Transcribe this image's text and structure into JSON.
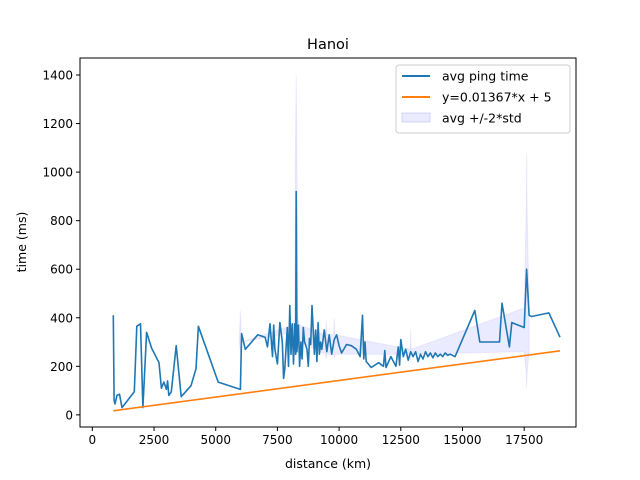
{
  "chart_data": {
    "type": "line",
    "title": "Hanoi",
    "xlabel": "distance (km)",
    "ylabel": "time (ms)",
    "xlim": [
      -500,
      19600
    ],
    "ylim": [
      -50,
      1470
    ],
    "xticks": [
      0,
      2500,
      5000,
      7500,
      10000,
      12500,
      15000,
      17500
    ],
    "xtick_labels": [
      "0",
      "2500",
      "5000",
      "7500",
      "10000",
      "12500",
      "15000",
      "17500"
    ],
    "yticks": [
      0,
      200,
      400,
      600,
      800,
      1000,
      1200,
      1400
    ],
    "ytick_labels": [
      "0",
      "200",
      "400",
      "600",
      "800",
      "1000",
      "1200",
      "1400"
    ],
    "legend_position": "top-right",
    "series": [
      {
        "name": "avg ping time",
        "kind": "line",
        "color": "#1f77b4",
        "x": [
          850,
          880,
          920,
          1000,
          1100,
          1200,
          1700,
          1800,
          1950,
          2050,
          2200,
          2400,
          2700,
          2800,
          2900,
          3000,
          3050,
          3100,
          3200,
          3400,
          3600,
          4000,
          4200,
          4300,
          5100,
          6000,
          6050,
          6200,
          6700,
          7000,
          7100,
          7200,
          7300,
          7350,
          7400,
          7500,
          7550,
          7600,
          7700,
          7750,
          7800,
          7900,
          7950,
          8000,
          8050,
          8100,
          8150,
          8200,
          8240,
          8260,
          8290,
          8350,
          8400,
          8450,
          8500,
          8550,
          8600,
          8700,
          8750,
          8800,
          8850,
          8900,
          9000,
          9050,
          9100,
          9150,
          9200,
          9250,
          9300,
          9400,
          9500,
          9600,
          9700,
          9800,
          9900,
          10000,
          10100,
          10300,
          10500,
          10700,
          10850,
          10950,
          11000,
          11050,
          11100,
          11300,
          11600,
          11800,
          11850,
          11900,
          12100,
          12300,
          12400,
          12450,
          12500,
          12600,
          12700,
          12800,
          12900,
          13000,
          13100,
          13200,
          13300,
          13400,
          13500,
          13600,
          13700,
          13800,
          13900,
          14000,
          14100,
          14200,
          14300,
          14400,
          14500,
          14700,
          15500,
          15700,
          16500,
          16600,
          16900,
          17000,
          17500,
          17600,
          17700,
          17800,
          18500,
          18950
        ],
        "y": [
          410,
          60,
          45,
          80,
          85,
          30,
          95,
          365,
          375,
          30,
          340,
          275,
          215,
          110,
          135,
          105,
          140,
          80,
          95,
          285,
          75,
          120,
          190,
          365,
          135,
          105,
          335,
          270,
          330,
          320,
          280,
          375,
          240,
          370,
          270,
          210,
          290,
          380,
          300,
          150,
          190,
          360,
          200,
          450,
          250,
          375,
          210,
          375,
          250,
          920,
          260,
          370,
          200,
          300,
          230,
          360,
          300,
          270,
          200,
          315,
          290,
          450,
          250,
          350,
          220,
          380,
          250,
          300,
          270,
          350,
          260,
          330,
          250,
          310,
          330,
          285,
          255,
          290,
          285,
          270,
          240,
          410,
          230,
          300,
          220,
          195,
          215,
          200,
          265,
          195,
          240,
          200,
          280,
          205,
          310,
          240,
          270,
          225,
          260,
          240,
          260,
          220,
          250,
          230,
          260,
          240,
          255,
          235,
          255,
          240,
          250,
          240,
          255,
          245,
          250,
          240,
          430,
          300,
          300,
          460,
          280,
          380,
          360,
          600,
          410,
          405,
          420,
          320
        ]
      },
      {
        "name": "y=0.01367*x + 5",
        "kind": "line",
        "color": "#ff7f0e",
        "x": [
          850,
          18950
        ],
        "y": [
          16.6,
          264.0
        ]
      },
      {
        "name": "avg +/-2*std",
        "kind": "area",
        "color": "#0000ff",
        "fill_opacity": 0.08,
        "x": [
          5950,
          6000,
          6050,
          8150,
          8200,
          8230,
          8260,
          8290,
          8330,
          8400,
          9450,
          9480,
          9510,
          9780,
          9800,
          9830,
          12880,
          12900,
          12920,
          17500,
          17580,
          17600,
          17620,
          17700
        ],
        "upper": [
          300,
          430,
          300,
          370,
          400,
          1100,
          1400,
          1100,
          400,
          370,
          330,
          390,
          330,
          330,
          400,
          330,
          270,
          355,
          270,
          440,
          850,
          1080,
          850,
          440
        ],
        "lower": [
          300,
          260,
          300,
          340,
          300,
          350,
          420,
          350,
          300,
          300,
          250,
          230,
          250,
          250,
          230,
          250,
          250,
          225,
          250,
          260,
          170,
          110,
          170,
          260
        ]
      }
    ]
  }
}
